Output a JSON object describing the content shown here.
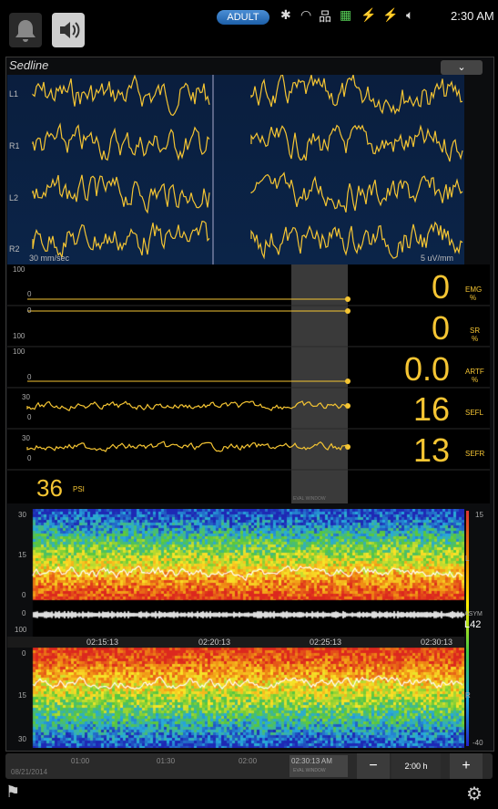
{
  "status_bar": {
    "mode_badge": "ADULT",
    "time": "2:30 AM",
    "icons": [
      "bell-icon",
      "speaker-icon",
      "bluetooth-icon",
      "wifi-icon",
      "network-icon",
      "grid-icon",
      "battery-icon",
      "battery-icon",
      "volume-icon"
    ]
  },
  "panel": {
    "title": "Sedline",
    "collapse_icon": "chevron-down-icon"
  },
  "eeg": {
    "channels": [
      "L1",
      "R1",
      "L2",
      "R2"
    ],
    "sweep_speed": "30 mm/sec",
    "scale": "5 uV/mm"
  },
  "trends": [
    {
      "top_label": "100",
      "bottom_label": "0",
      "value": "0",
      "param": "EMG",
      "unit": "%"
    },
    {
      "top_label": "0",
      "bottom_label": "100",
      "value": "0",
      "param": "SR",
      "unit": "%"
    },
    {
      "top_label": "100",
      "bottom_label": "0",
      "value": "0.0",
      "param": "ARTF",
      "unit": "%"
    },
    {
      "top_label": "30",
      "bottom_label": "0",
      "value": "16",
      "param": "SEFL",
      "unit": ""
    },
    {
      "top_label": "30",
      "bottom_label": "0",
      "value": "13",
      "param": "SEFR",
      "unit": ""
    }
  ],
  "psi": {
    "value": "36",
    "label": "PSI"
  },
  "trend_window_label": "EVAL WINDOW",
  "spectrogram": {
    "left_top": "30",
    "left_mid": "15",
    "left_zero": "0",
    "asym_ticks": [
      "0",
      "100"
    ],
    "right_top": "15",
    "right_bottom": "-40",
    "left_side": "L",
    "right_side": "R",
    "asym_label": "ASYM",
    "asym_value": "L42",
    "r_zero": "0",
    "r_mid": "15",
    "r_bottom": "30",
    "times": [
      "02:15:13",
      "02:20:13",
      "02:25:13",
      "02:30:13"
    ]
  },
  "timeline": {
    "date": "08/21/2014",
    "ticks": [
      "01:00",
      "01:30",
      "02:00"
    ],
    "current": "02:30:13 AM",
    "current_sub": "EVAL WINDOW",
    "minus": "−",
    "duration": "2:00 h",
    "plus": "+"
  },
  "colors": {
    "trace": "#f5c533",
    "eeg_bg": "#0b2448",
    "accent": "#2f7ad0"
  }
}
